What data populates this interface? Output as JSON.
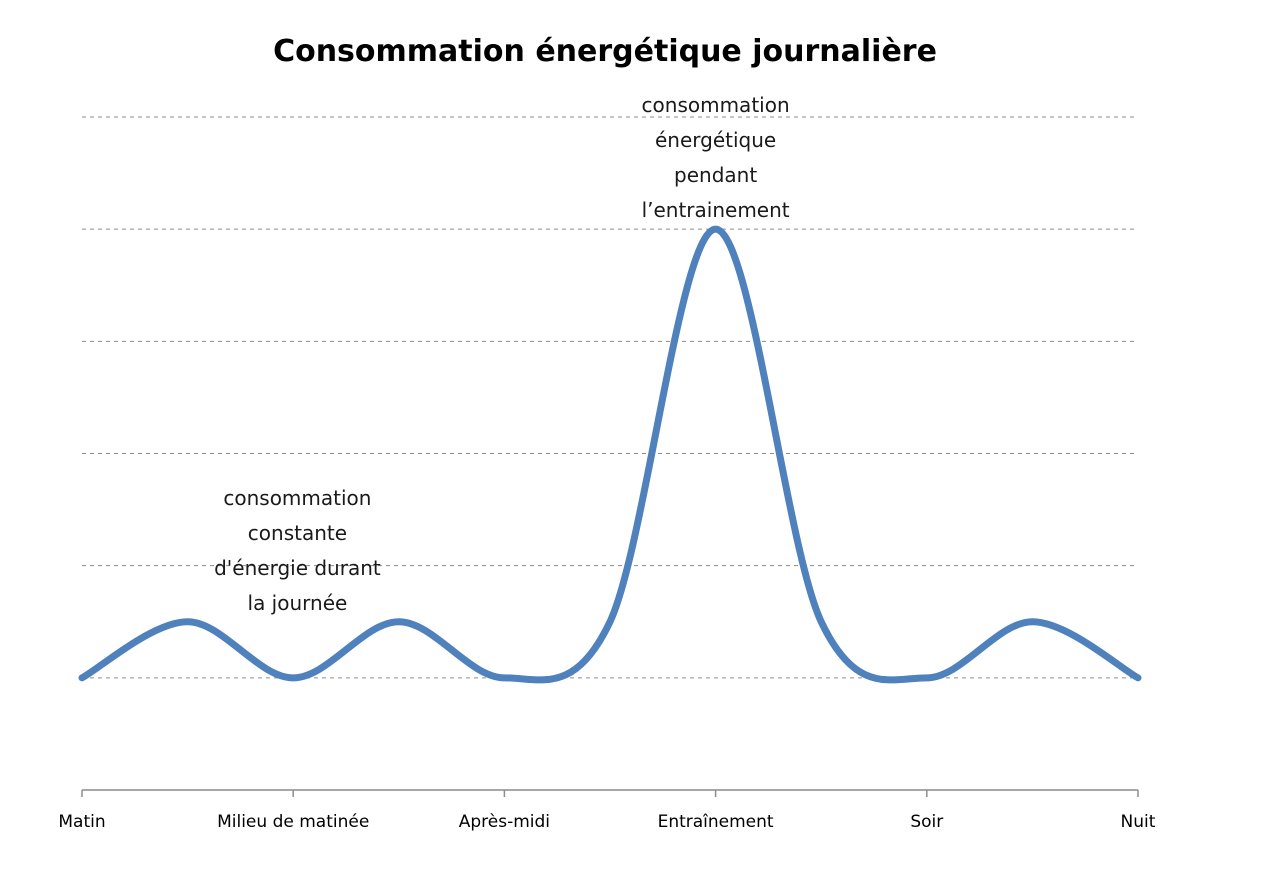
{
  "chart_data": {
    "type": "line",
    "title": "Consommation énergétique journalière",
    "categories": [
      "Matin",
      "Milieu de matinée",
      "Après-midi",
      "Entraînement",
      "Soir",
      "Nuit"
    ],
    "series": [
      {
        "x": [
          0,
          0.5,
          1,
          1.5,
          2,
          2.5,
          3,
          3.5,
          4,
          4.5,
          5
        ],
        "values": [
          1,
          1.5,
          1,
          1.5,
          1,
          1.5,
          5,
          1.5,
          1,
          1.5,
          1
        ],
        "color": "#4f81bd"
      }
    ],
    "ylim": [
      0,
      6
    ],
    "grid": true,
    "smooth": true,
    "annotations": [
      {
        "lines": [
          "consommation",
          "constante",
          "d'énergie durant",
          "la journée"
        ],
        "x": 1.02,
        "y": 1.5
      },
      {
        "lines": [
          "consommation",
          "énergétique",
          "pendant",
          "l’entrainement"
        ],
        "x": 3.0,
        "y": 5.0
      }
    ]
  }
}
